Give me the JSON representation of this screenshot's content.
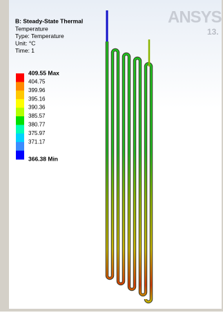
{
  "header": {
    "title": "B: Steady-State Thermal",
    "lines": [
      "Temperature",
      "Type: Temperature",
      "Unit: °C",
      "Time: 1"
    ]
  },
  "legend": {
    "labels": [
      "409.55 Max",
      "404.75",
      "399.96",
      "395.16",
      "390.36",
      "385.57",
      "380.77",
      "375.97",
      "371.17",
      "366.38 Min"
    ],
    "colors": [
      "#ff0000",
      "#ff8a00",
      "#ffc800",
      "#ffff00",
      "#b4ff00",
      "#00e000",
      "#00ffb4",
      "#00d2ff",
      "#3c8cff",
      "#0000ff"
    ]
  },
  "logo": {
    "brand": "ANSYS",
    "version": "13."
  }
}
